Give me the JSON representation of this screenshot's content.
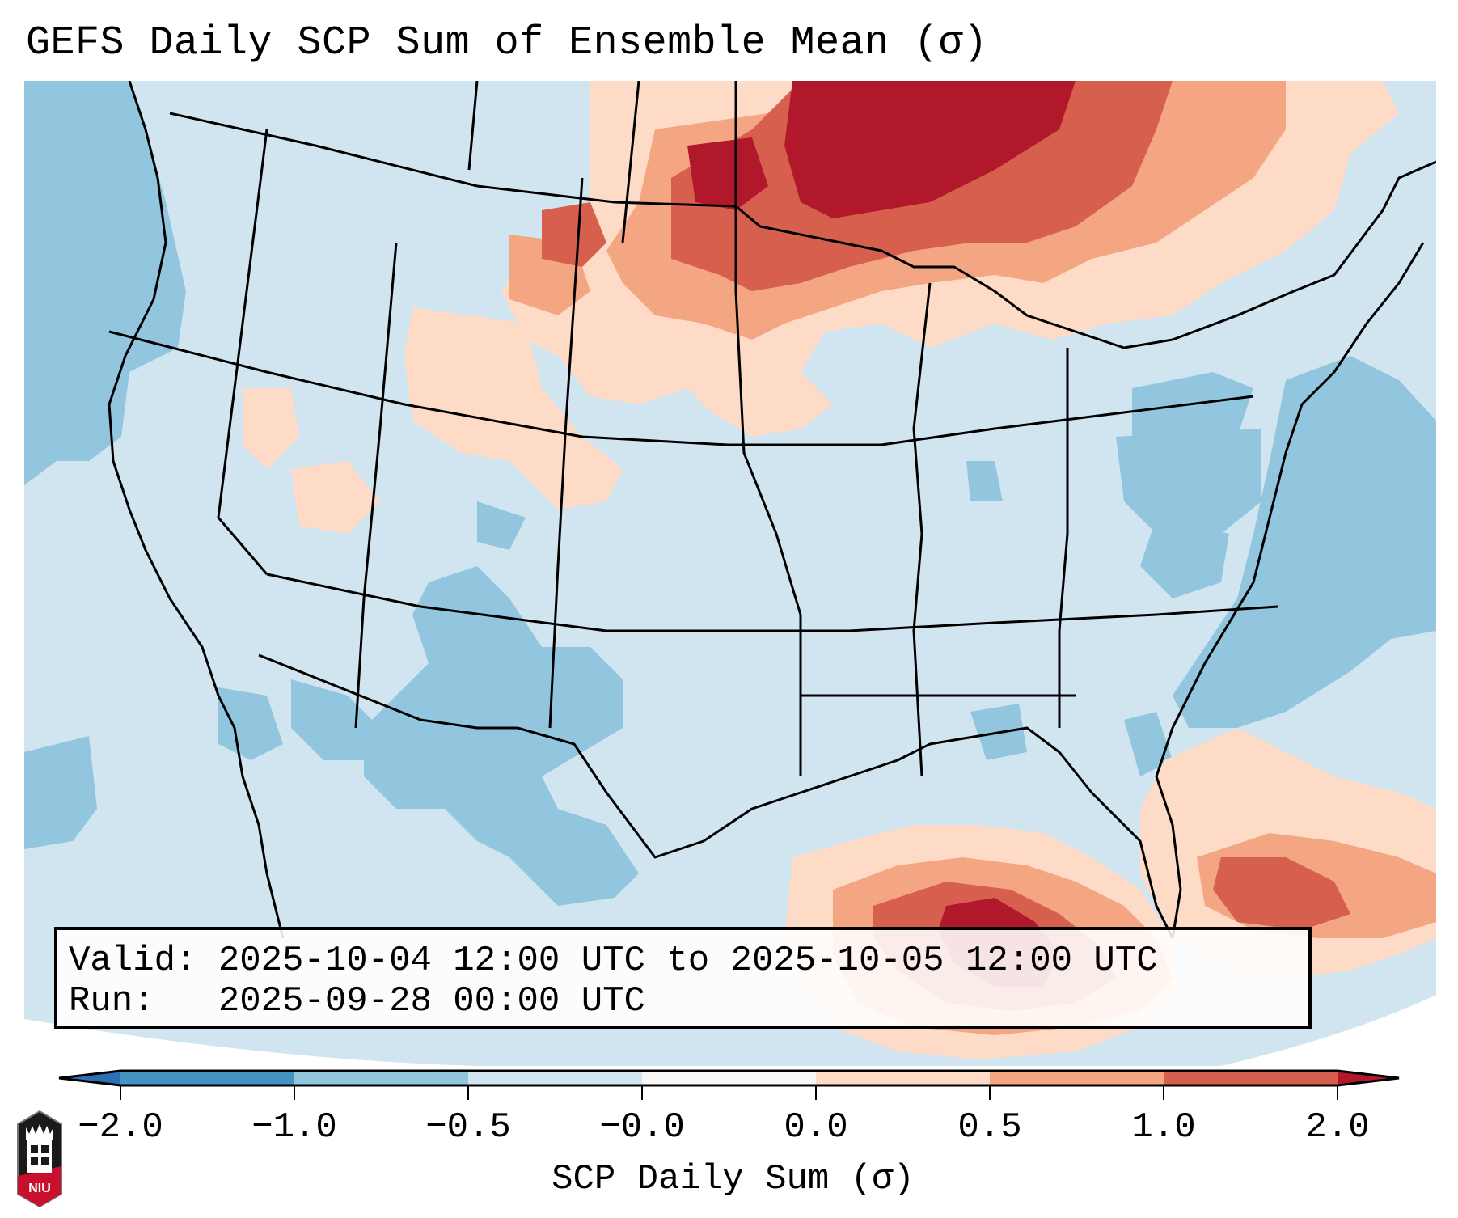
{
  "title": "GEFS Daily SCP Sum of Ensemble Mean (σ)",
  "info_box": {
    "valid": "Valid: 2025-10-04 12:00 UTC to 2025-10-05 12:00 UTC",
    "run": "Run:   2025-09-28 00:00 UTC"
  },
  "colorbar": {
    "label": "SCP Daily Sum (σ)",
    "ticks": [
      "−2.0",
      "−1.0",
      "−0.5",
      "−0.0",
      "0.0",
      "0.5",
      "1.0",
      "2.0"
    ],
    "colors": [
      "#2c6fb3",
      "#4393c3",
      "#92c5de",
      "#d1e5f0",
      "#f7f7f7",
      "#fddbc7",
      "#f4a582",
      "#d6604d",
      "#b2182b"
    ],
    "extend": "both"
  },
  "logo": {
    "text": "NIU",
    "accent": "#c8102e"
  },
  "map_colors": {
    "base": "#d1e5f0",
    "ocean_low": "#92c5de",
    "light_red": "#fddbc7",
    "salmon": "#f4a582",
    "red": "#d6604d",
    "dark_red": "#b2182b",
    "border": "#000000"
  }
}
